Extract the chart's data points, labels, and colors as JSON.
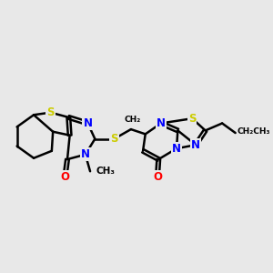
{
  "background_color": "#e8e8e8",
  "atom_color_N": "#0000FF",
  "atom_color_S": "#CCCC00",
  "atom_color_O": "#FF0000",
  "atom_color_C": "#000000",
  "bond_color": "#000000",
  "bond_width": 1.8,
  "fig_width": 3.0,
  "fig_height": 3.0,
  "xlim": [
    0,
    10
  ],
  "ylim": [
    0,
    10
  ],
  "doffset": 0.07
}
